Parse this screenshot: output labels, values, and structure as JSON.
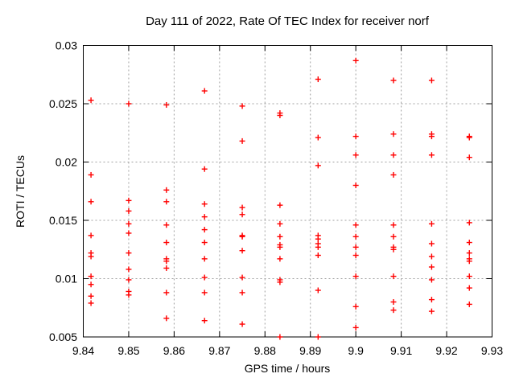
{
  "chart_data": {
    "type": "scatter",
    "title": "Day 111 of 2022, Rate Of TEC Index for receiver norf",
    "xlabel": "GPS time / hours",
    "ylabel": "ROTI / TECUs",
    "xlim": [
      9.84,
      9.93
    ],
    "ylim": [
      0.005,
      0.03
    ],
    "grid": true,
    "legend": "none",
    "marker": "plus",
    "marker_color": "#ff0000",
    "grid_color": "#a0a0a0",
    "axis_color": "#000000",
    "xticks": [
      {
        "v": 9.84,
        "label": "9.84"
      },
      {
        "v": 9.85,
        "label": "9.85"
      },
      {
        "v": 9.86,
        "label": "9.86"
      },
      {
        "v": 9.87,
        "label": "9.87"
      },
      {
        "v": 9.88,
        "label": "9.88"
      },
      {
        "v": 9.89,
        "label": "9.89"
      },
      {
        "v": 9.9,
        "label": "9.9"
      },
      {
        "v": 9.91,
        "label": "9.91"
      },
      {
        "v": 9.92,
        "label": "9.92"
      },
      {
        "v": 9.93,
        "label": "9.93"
      }
    ],
    "yticks": [
      {
        "v": 0.005,
        "label": "0.005"
      },
      {
        "v": 0.01,
        "label": "0.01"
      },
      {
        "v": 0.015,
        "label": "0.015"
      },
      {
        "v": 0.02,
        "label": "0.02"
      },
      {
        "v": 0.025,
        "label": "0.025"
      },
      {
        "v": 0.03,
        "label": "0.03"
      }
    ],
    "series": [
      {
        "name": "ROTI",
        "columns": [
          {
            "t": 9.8417,
            "values": [
              0.0253,
              0.0189,
              0.0166,
              0.0137,
              0.0122,
              0.0119,
              0.0102,
              0.0095,
              0.0085,
              0.0079
            ]
          },
          {
            "t": 9.85,
            "values": [
              0.025,
              0.0167,
              0.0158,
              0.0147,
              0.0139,
              0.0122,
              0.0108,
              0.0099,
              0.0089,
              0.0086
            ]
          },
          {
            "t": 9.8583,
            "values": [
              0.0249,
              0.0176,
              0.0166,
              0.0146,
              0.0131,
              0.0117,
              0.0115,
              0.0109,
              0.0088,
              0.0066
            ]
          },
          {
            "t": 9.8667,
            "values": [
              0.0261,
              0.0194,
              0.0164,
              0.0153,
              0.0142,
              0.0131,
              0.0117,
              0.0101,
              0.0088,
              0.0064
            ]
          },
          {
            "t": 9.875,
            "values": [
              0.0248,
              0.0218,
              0.0161,
              0.0155,
              0.0137,
              0.0136,
              0.0124,
              0.0101,
              0.0088,
              0.0061
            ]
          },
          {
            "t": 9.8833,
            "values": [
              0.0242,
              0.024,
              0.0163,
              0.0147,
              0.0136,
              0.0129,
              0.0127,
              0.0117,
              0.0099,
              0.0097,
              0.005
            ]
          },
          {
            "t": 9.8917,
            "values": [
              0.0271,
              0.0221,
              0.0197,
              0.0137,
              0.0134,
              0.013,
              0.0127,
              0.012,
              0.009,
              0.005
            ]
          },
          {
            "t": 9.9,
            "values": [
              0.0287,
              0.0222,
              0.0206,
              0.018,
              0.0146,
              0.0136,
              0.0127,
              0.012,
              0.0102,
              0.0076,
              0.0058
            ]
          },
          {
            "t": 9.9083,
            "values": [
              0.027,
              0.0224,
              0.0206,
              0.0189,
              0.0146,
              0.0136,
              0.0127,
              0.0125,
              0.0102,
              0.008,
              0.0073
            ]
          },
          {
            "t": 9.9167,
            "values": [
              0.027,
              0.0224,
              0.0222,
              0.0206,
              0.0147,
              0.013,
              0.0119,
              0.011,
              0.0099,
              0.0082,
              0.0072
            ]
          },
          {
            "t": 9.925,
            "values": [
              0.0222,
              0.0221,
              0.0204,
              0.0148,
              0.0131,
              0.0122,
              0.0117,
              0.0115,
              0.0102,
              0.0092,
              0.0078
            ]
          }
        ]
      }
    ]
  }
}
